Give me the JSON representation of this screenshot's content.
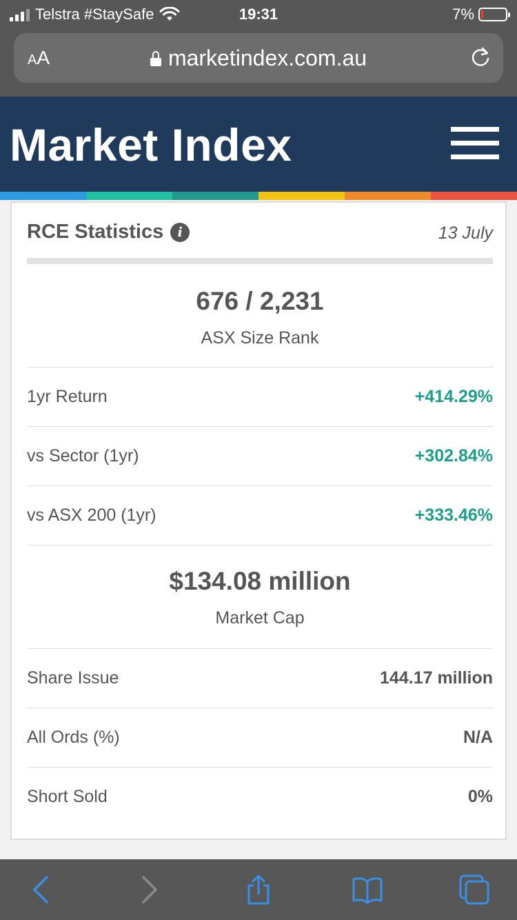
{
  "status_bar": {
    "carrier": "Telstra #StaySafe",
    "time": "19:31",
    "battery": "7%",
    "battery_fraction": 0.07
  },
  "browser": {
    "aa_label_small": "A",
    "aa_label_large": "A",
    "url": "marketindex.com.au"
  },
  "site": {
    "logo": "Market Index",
    "stripe_colors": [
      "#2d9be0",
      "#22bfa0",
      "#229a8e",
      "#f2c418",
      "#ee8a2b",
      "#e9533f"
    ]
  },
  "card": {
    "title": "RCE Statistics",
    "info_glyph": "i",
    "date": "13 July",
    "size_rank": {
      "value": "676 / 2,231",
      "label": "ASX Size Rank"
    },
    "returns": [
      {
        "label": "1yr Return",
        "value": "+414.29%"
      },
      {
        "label": "vs Sector (1yr)",
        "value": "+302.84%"
      },
      {
        "label": "vs ASX 200 (1yr)",
        "value": "+333.46%"
      }
    ],
    "market_cap": {
      "value": "$134.08 million",
      "label": "Market Cap"
    },
    "details": [
      {
        "label": "Share Issue",
        "value": "144.17 million"
      },
      {
        "label": "All Ords (%)",
        "value": "N/A"
      },
      {
        "label": "Short Sold",
        "value": "0%"
      }
    ]
  },
  "colors": {
    "header_bg": "#1f3a5a",
    "positive": "#1e9d8b",
    "toolbar_icon_active": "#3a8ee6",
    "toolbar_icon_disabled": "#8a8a8a"
  },
  "toolbar_icons": [
    "back-icon",
    "forward-icon",
    "share-icon",
    "bookmarks-icon",
    "tabs-icon"
  ]
}
